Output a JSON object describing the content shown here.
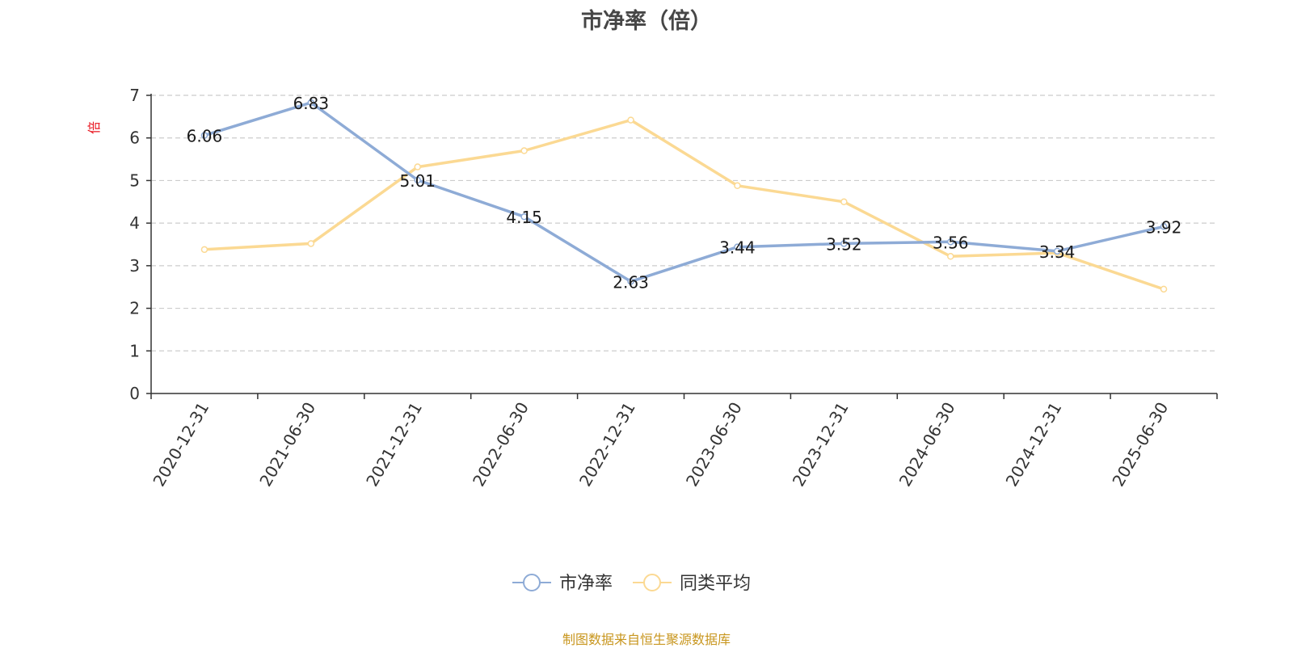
{
  "chart_data": {
    "type": "line",
    "title": "市净率（倍）",
    "ylabel": "倍",
    "ylim": [
      0,
      7
    ],
    "yticks": [
      0,
      1,
      2,
      3,
      4,
      5,
      6,
      7
    ],
    "grid": true,
    "legend_position": "bottom",
    "categories": [
      "2020-12-31",
      "2021-06-30",
      "2021-12-31",
      "2022-06-30",
      "2022-12-31",
      "2023-06-30",
      "2023-12-31",
      "2024-06-30",
      "2024-12-31",
      "2025-06-30"
    ],
    "series": [
      {
        "name": "市净率",
        "color": "#8eabd6",
        "show_labels": true,
        "values": [
          6.06,
          6.83,
          5.01,
          4.15,
          2.63,
          3.44,
          3.52,
          3.56,
          3.34,
          3.92
        ]
      },
      {
        "name": "同类平均",
        "color": "#fbd993",
        "show_labels": false,
        "values": [
          3.38,
          3.52,
          5.32,
          5.7,
          6.42,
          4.88,
          4.5,
          3.22,
          3.3,
          2.45
        ]
      }
    ]
  },
  "source": "制图数据来自恒生聚源数据库",
  "colors": {
    "ylabel": "#e8141e",
    "source": "#c8961e",
    "grid": "#cccccc",
    "axis": "#333333"
  }
}
